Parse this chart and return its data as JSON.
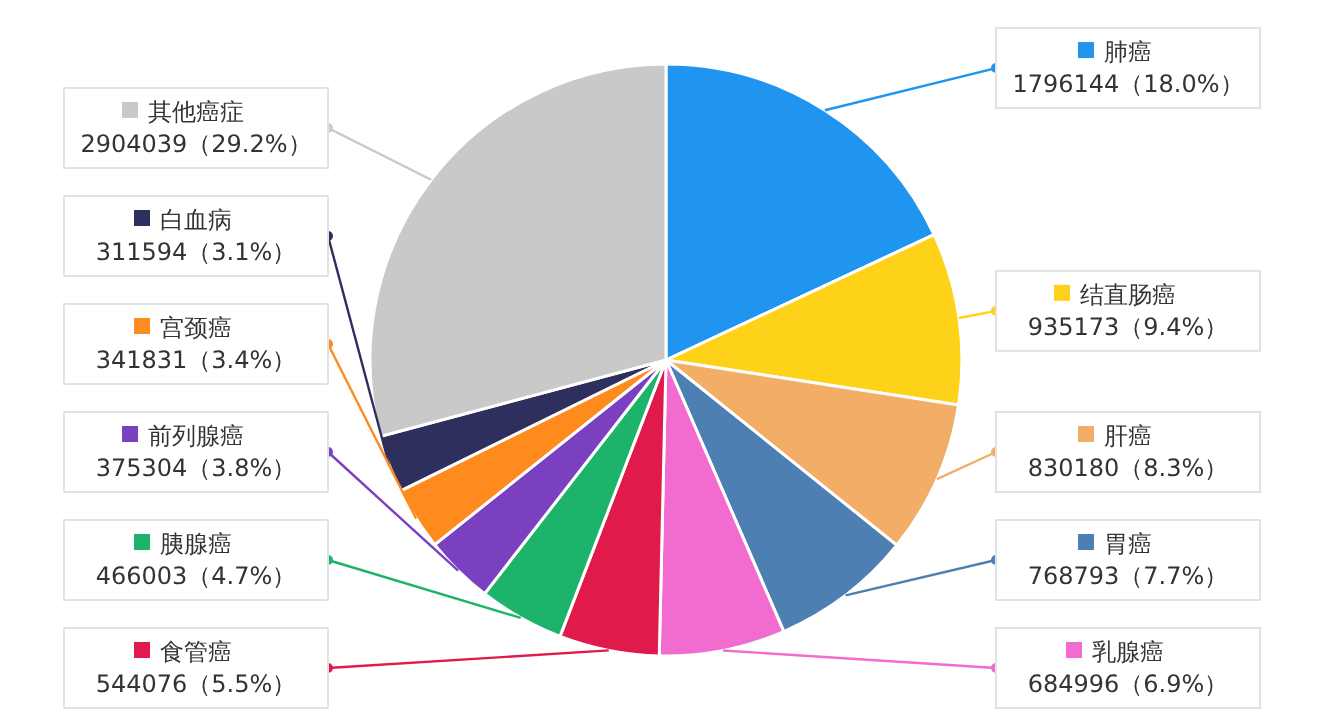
{
  "chart_data": {
    "type": "pie",
    "legend": "left",
    "categories": [
      "肺癌",
      "结直肠癌",
      "肝癌",
      "胃癌",
      "乳腺癌",
      "食管癌",
      "胰腺癌",
      "前列腺癌",
      "宫颈癌",
      "白血病",
      "其他癌症"
    ],
    "values": [
      1796144,
      935173,
      830180,
      768793,
      684996,
      544076,
      466003,
      375304,
      341831,
      311594,
      2904039
    ],
    "value_labels": [
      "1796144（18.0%）",
      "935173（9.4%）",
      "830180（8.3%）",
      "768793（7.7%）",
      "684996（6.9%）",
      "544076（5.5%）",
      "466003（4.7%）",
      "375304（3.8%）",
      "341831（3.4%）",
      "311594（3.1%）",
      "2904039（29.2%）"
    ],
    "colors": [
      "#1f95f0",
      "#ffd21a",
      "#f2ae66",
      "#4d7fb3",
      "#f26bce",
      "#e01a4b",
      "#1db36b",
      "#7a40bf",
      "#ff8a1e",
      "#2f2f5e",
      "#c9c9c9"
    ]
  }
}
